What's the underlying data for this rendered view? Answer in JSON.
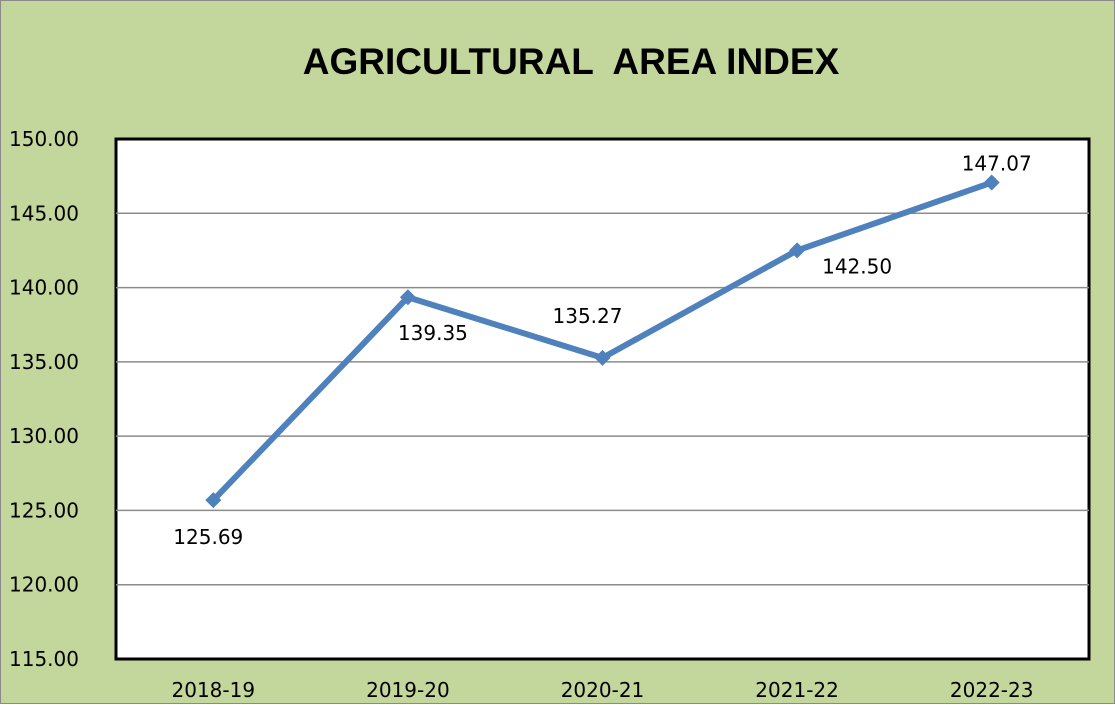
{
  "chart_data": {
    "type": "line",
    "title": "AGRICULTURAL  AREA INDEX",
    "xlabel": "",
    "ylabel": "",
    "categories": [
      "2018-19",
      "2019-20",
      "2020-21",
      "2021-22",
      "2022-23"
    ],
    "series": [
      {
        "values": [
          125.69,
          139.35,
          135.27,
          142.5,
          147.07
        ],
        "labels": [
          "125.69",
          "139.35",
          "135.27",
          "142.50",
          "147.07"
        ],
        "color": "#4f81bd"
      }
    ],
    "ylim": [
      115,
      150
    ],
    "yticks": [
      "115.00",
      "120.00",
      "125.00",
      "130.00",
      "135.00",
      "140.00",
      "145.00",
      "150.00"
    ],
    "grid": true,
    "legend": "none",
    "colors": {
      "background": "#c3d69b",
      "plot_area": "#ffffff",
      "gridline": "#8c8c8c",
      "line": "#4f81bd"
    }
  }
}
